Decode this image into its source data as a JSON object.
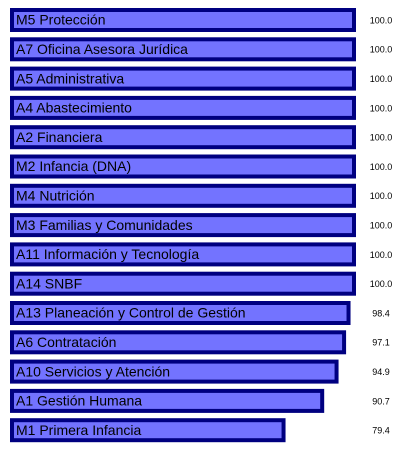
{
  "chart_data": {
    "type": "hbar",
    "categories": [
      "M5 Protección",
      "A7 Oficina Asesora Jurídica",
      "A5 Administrativa",
      "A4 Abastecimiento",
      "A2 Financiera",
      "M2 Infancia (DNA)",
      "M4 Nutrición",
      "M3 Familias y Comunidades",
      "A11 Información y Tecnología",
      "A14 SNBF",
      "A13 Planeación y Control de Gestión",
      "A6 Contratación",
      "A10 Servicios y Atención",
      "A1 Gestión Humana",
      "M1 Primera Infancia"
    ],
    "values": [
      100,
      100,
      100,
      100,
      100,
      100,
      100,
      100,
      100,
      100,
      98.4,
      97.1,
      94.9,
      90.7,
      79.4
    ],
    "value_labels": [
      "100.0",
      "100.0",
      "100.0",
      "100.0",
      "100.0",
      "100.0",
      "100.0",
      "100.0",
      "100.0",
      "100.0",
      "98.4",
      "97.1",
      "94.9",
      "90.7",
      "79.4"
    ],
    "color": "#7373ff",
    "edge_color": "#000080",
    "xlim": [
      0,
      100
    ]
  }
}
